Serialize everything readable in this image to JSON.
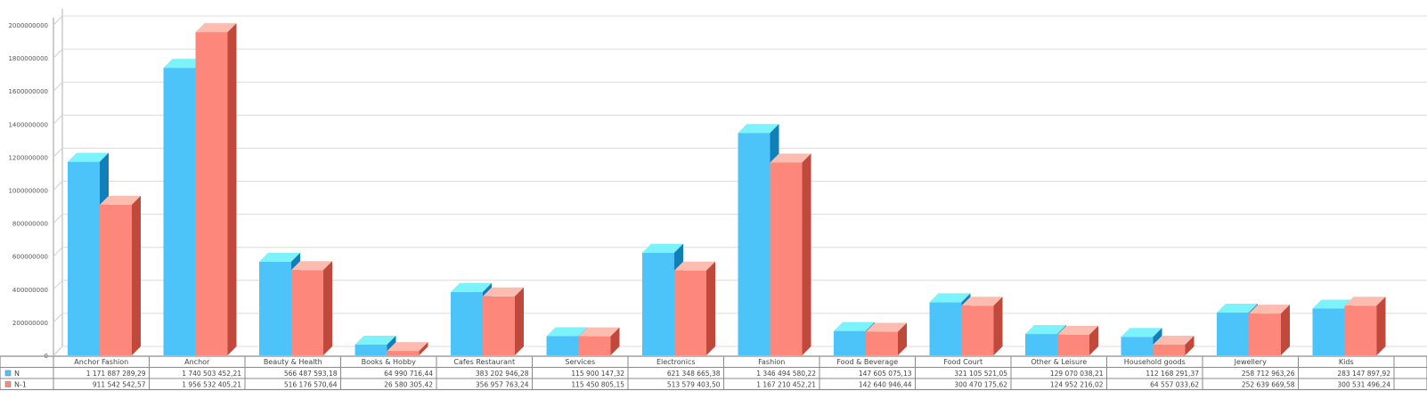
{
  "chart_data": {
    "type": "bar",
    "style": "3d-clustered-column",
    "categories": [
      "Anchor Fashion",
      "Anchor",
      "Beauty & Health",
      "Books & Hobby",
      "Cafes Restaurant",
      "Services",
      "Electronics",
      "Fashion",
      "Food & Beverage",
      "Food Court",
      "Other & Leisure",
      "Household goods",
      "Jewellery",
      "Kids"
    ],
    "series": [
      {
        "name": "N",
        "color": "#4cc4fa",
        "top": "#7cf2fb",
        "side": "#1180b8",
        "values": [
          1171887289.29,
          1740503452.21,
          566487593.18,
          64990716.44,
          383202946.28,
          115900147.32,
          621348665.38,
          1346494580.22,
          147605075.13,
          321105521.05,
          129070038.21,
          112168291.37,
          258712963.26,
          283147897.92
        ]
      },
      {
        "name": "N-1",
        "color": "#fd877a",
        "top": "#fcbcb0",
        "side": "#c0493c",
        "values": [
          911542542.57,
          1956532405.21,
          516176570.64,
          26580305.42,
          356957763.24,
          115450805.15,
          513579403.5,
          1167210452.21,
          142640946.44,
          300470175.62,
          124952216.02,
          64557033.62,
          252639669.58,
          300531496.24
        ]
      }
    ],
    "value_labels": {
      "N": [
        "1 171 887 289,29",
        "1 740 503 452,21",
        "566 487 593,18",
        "64 990 716,44",
        "383 202 946,28",
        "115 900 147,32",
        "621 348 665,38",
        "1 346 494 580,22",
        "147 605 075,13",
        "321 105 521,05",
        "129 070 038,21",
        "112 168 291,37",
        "258 712 963,26",
        "283 147 897,92"
      ],
      "N-1": [
        "911 542 542,57",
        "1 956 532 405,21",
        "516 176 570,64",
        "26 580 305,42",
        "356 957 763,24",
        "115 450 805,15",
        "513 579 403,50",
        "1 167 210 452,21",
        "142 640 946,44",
        "300 470 175,62",
        "124 952 216,02",
        "64 557 033,62",
        "252 639 669,58",
        "300 531 496,24"
      ]
    },
    "yticks": [
      "0",
      "200000000",
      "400000000",
      "600000000",
      "800000000",
      "1000000000",
      "1200000000",
      "1400000000",
      "1600000000",
      "1800000000",
      "2000000000"
    ],
    "ylim": [
      0,
      2000000000
    ],
    "grid": true,
    "legend": "data-table-bottom",
    "title": "",
    "xlabel": "",
    "ylabel": ""
  }
}
